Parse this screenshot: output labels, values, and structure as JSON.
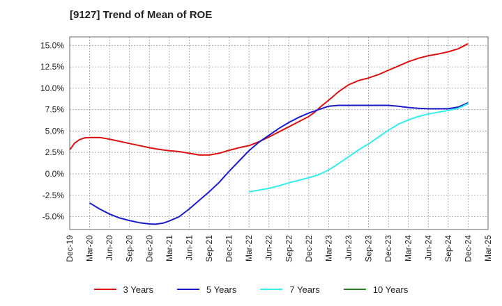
{
  "chart_data": {
    "type": "line",
    "title": "[9127]  Trend of Mean of ROE",
    "xlabel": "",
    "ylabel": "",
    "x_ticks": [
      "Dec-19",
      "Mar-20",
      "Jun-20",
      "Sep-20",
      "Dec-20",
      "Mar-21",
      "Jun-21",
      "Sep-21",
      "Dec-21",
      "Mar-22",
      "Jun-22",
      "Sep-22",
      "Dec-22",
      "Mar-23",
      "Jun-23",
      "Sep-23",
      "Dec-23",
      "Mar-24",
      "Jun-24",
      "Sep-24",
      "Dec-24",
      "Mar-25"
    ],
    "y_ticks": [
      "15.0%",
      "12.5%",
      "10.0%",
      "7.5%",
      "5.0%",
      "2.5%",
      "0.0%",
      "-2.5%",
      "-5.0%"
    ],
    "ylim": [
      -6.5,
      16.0
    ],
    "grid": true,
    "legend_position": "bottom",
    "series": [
      {
        "name": "3 Years",
        "color": "#dd1111",
        "points": [
          [
            0,
            2.8
          ],
          [
            0.25,
            3.6
          ],
          [
            0.5,
            4.0
          ],
          [
            0.75,
            4.2
          ],
          [
            1,
            4.25
          ],
          [
            1.5,
            4.25
          ],
          [
            2,
            4.05
          ],
          [
            3,
            3.55
          ],
          [
            4,
            3.05
          ],
          [
            4.5,
            2.85
          ],
          [
            5,
            2.7
          ],
          [
            5.5,
            2.6
          ],
          [
            6,
            2.4
          ],
          [
            6.5,
            2.2
          ],
          [
            7,
            2.2
          ],
          [
            7.5,
            2.4
          ],
          [
            8,
            2.75
          ],
          [
            8.5,
            3.05
          ],
          [
            9,
            3.3
          ],
          [
            9.5,
            3.75
          ],
          [
            10,
            4.3
          ],
          [
            10.5,
            4.9
          ],
          [
            11,
            5.5
          ],
          [
            11.5,
            6.1
          ],
          [
            12,
            6.7
          ],
          [
            12.3,
            7.2
          ],
          [
            12.6,
            7.85
          ],
          [
            13,
            8.6
          ],
          [
            13.5,
            9.6
          ],
          [
            14,
            10.4
          ],
          [
            14.5,
            10.9
          ],
          [
            15,
            11.2
          ],
          [
            15.5,
            11.6
          ],
          [
            16,
            12.1
          ],
          [
            16.5,
            12.6
          ],
          [
            17,
            13.1
          ],
          [
            17.5,
            13.5
          ],
          [
            18,
            13.8
          ],
          [
            18.5,
            14.0
          ],
          [
            19,
            14.25
          ],
          [
            19.5,
            14.6
          ],
          [
            20,
            15.2
          ]
        ]
      },
      {
        "name": "5 Years",
        "color": "#1a1acc",
        "points": [
          [
            1,
            -3.4
          ],
          [
            1.5,
            -4.1
          ],
          [
            2,
            -4.7
          ],
          [
            2.5,
            -5.15
          ],
          [
            3,
            -5.45
          ],
          [
            3.5,
            -5.7
          ],
          [
            4,
            -5.85
          ],
          [
            4.3,
            -5.88
          ],
          [
            4.7,
            -5.75
          ],
          [
            5,
            -5.5
          ],
          [
            5.5,
            -5.0
          ],
          [
            6,
            -4.1
          ],
          [
            6.5,
            -3.1
          ],
          [
            7,
            -2.1
          ],
          [
            7.5,
            -1.0
          ],
          [
            8,
            0.3
          ],
          [
            8.5,
            1.5
          ],
          [
            9,
            2.7
          ],
          [
            9.5,
            3.7
          ],
          [
            10,
            4.5
          ],
          [
            10.5,
            5.3
          ],
          [
            11,
            6.0
          ],
          [
            11.5,
            6.6
          ],
          [
            12,
            7.1
          ],
          [
            12.5,
            7.5
          ],
          [
            13,
            7.9
          ],
          [
            13.5,
            8.0
          ],
          [
            14,
            8.0
          ],
          [
            15,
            8.0
          ],
          [
            16,
            8.0
          ],
          [
            16.5,
            7.9
          ],
          [
            17,
            7.75
          ],
          [
            17.5,
            7.65
          ],
          [
            18,
            7.6
          ],
          [
            18.5,
            7.6
          ],
          [
            19,
            7.6
          ],
          [
            19.5,
            7.8
          ],
          [
            20,
            8.3
          ]
        ]
      },
      {
        "name": "7 Years",
        "color": "#33eeee",
        "points": [
          [
            9,
            -2.1
          ],
          [
            9.5,
            -1.9
          ],
          [
            10,
            -1.7
          ],
          [
            10.5,
            -1.4
          ],
          [
            11,
            -1.05
          ],
          [
            11.5,
            -0.75
          ],
          [
            12,
            -0.45
          ],
          [
            12.5,
            -0.1
          ],
          [
            13,
            0.45
          ],
          [
            13.5,
            1.2
          ],
          [
            14,
            2.0
          ],
          [
            14.5,
            2.8
          ],
          [
            15,
            3.5
          ],
          [
            15.5,
            4.3
          ],
          [
            16,
            5.1
          ],
          [
            16.5,
            5.8
          ],
          [
            17,
            6.3
          ],
          [
            17.5,
            6.7
          ],
          [
            18,
            7.0
          ],
          [
            18.5,
            7.2
          ],
          [
            19,
            7.4
          ],
          [
            19.5,
            7.65
          ],
          [
            20,
            8.2
          ]
        ]
      },
      {
        "name": "10 Years",
        "color": "#228822",
        "points": []
      }
    ]
  }
}
